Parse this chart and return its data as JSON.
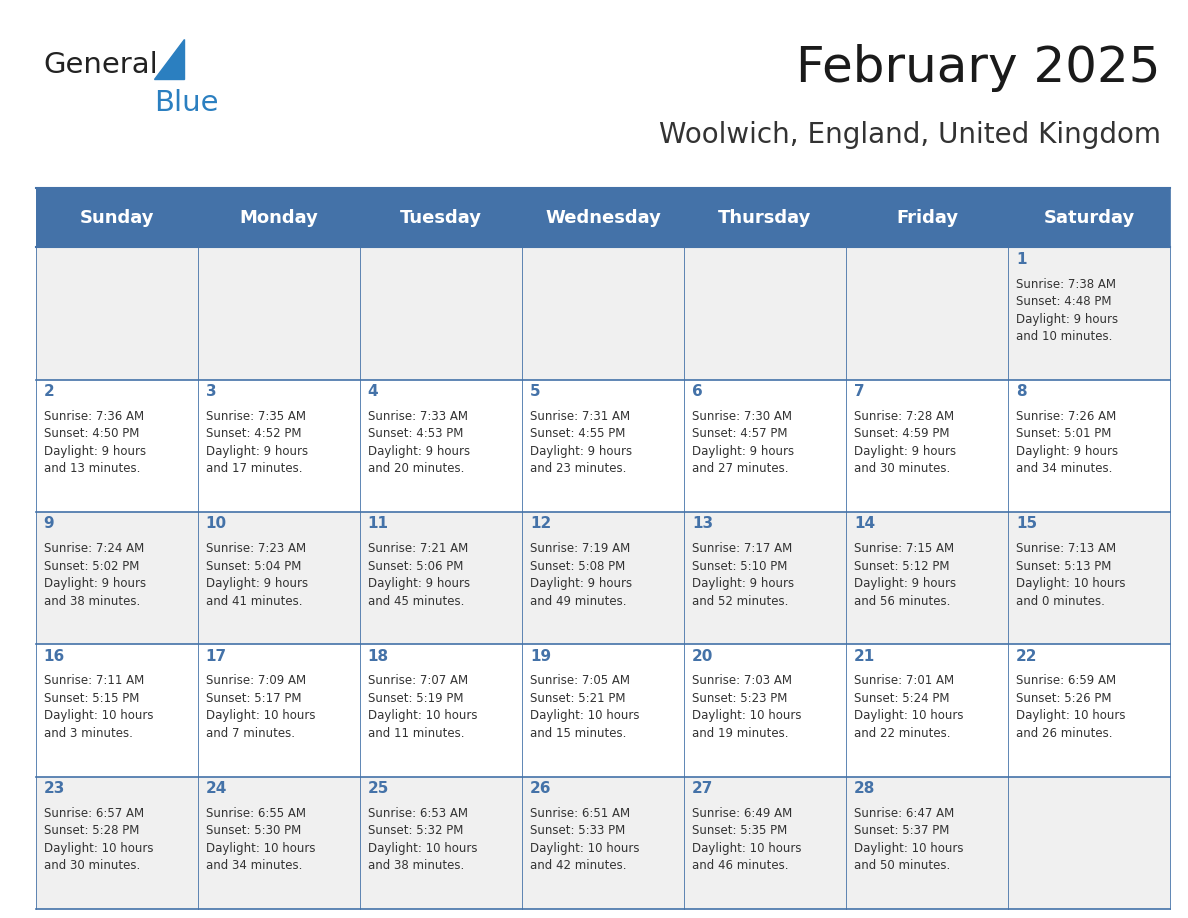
{
  "title": "February 2025",
  "subtitle": "Woolwich, England, United Kingdom",
  "header_bg_color": "#4472a8",
  "header_text_color": "#ffffff",
  "header_font_size": 13,
  "day_names": [
    "Sunday",
    "Monday",
    "Tuesday",
    "Wednesday",
    "Thursday",
    "Friday",
    "Saturday"
  ],
  "odd_row_bg": "#f0f0f0",
  "even_row_bg": "#ffffff",
  "cell_border_color": "#4472a8",
  "day_num_color": "#4472a8",
  "day_num_font_size": 11,
  "info_font_size": 8.5,
  "info_color": "#333333",
  "title_font_size": 36,
  "subtitle_font_size": 20,
  "logo_general_color": "#222222",
  "logo_blue_color": "#2b7fc0",
  "calendar_data": [
    [
      {
        "day": null,
        "sunrise": null,
        "sunset": null,
        "daylight": null
      },
      {
        "day": null,
        "sunrise": null,
        "sunset": null,
        "daylight": null
      },
      {
        "day": null,
        "sunrise": null,
        "sunset": null,
        "daylight": null
      },
      {
        "day": null,
        "sunrise": null,
        "sunset": null,
        "daylight": null
      },
      {
        "day": null,
        "sunrise": null,
        "sunset": null,
        "daylight": null
      },
      {
        "day": null,
        "sunrise": null,
        "sunset": null,
        "daylight": null
      },
      {
        "day": 1,
        "sunrise": "7:38 AM",
        "sunset": "4:48 PM",
        "daylight": "9 hours\nand 10 minutes."
      }
    ],
    [
      {
        "day": 2,
        "sunrise": "7:36 AM",
        "sunset": "4:50 PM",
        "daylight": "9 hours\nand 13 minutes."
      },
      {
        "day": 3,
        "sunrise": "7:35 AM",
        "sunset": "4:52 PM",
        "daylight": "9 hours\nand 17 minutes."
      },
      {
        "day": 4,
        "sunrise": "7:33 AM",
        "sunset": "4:53 PM",
        "daylight": "9 hours\nand 20 minutes."
      },
      {
        "day": 5,
        "sunrise": "7:31 AM",
        "sunset": "4:55 PM",
        "daylight": "9 hours\nand 23 minutes."
      },
      {
        "day": 6,
        "sunrise": "7:30 AM",
        "sunset": "4:57 PM",
        "daylight": "9 hours\nand 27 minutes."
      },
      {
        "day": 7,
        "sunrise": "7:28 AM",
        "sunset": "4:59 PM",
        "daylight": "9 hours\nand 30 minutes."
      },
      {
        "day": 8,
        "sunrise": "7:26 AM",
        "sunset": "5:01 PM",
        "daylight": "9 hours\nand 34 minutes."
      }
    ],
    [
      {
        "day": 9,
        "sunrise": "7:24 AM",
        "sunset": "5:02 PM",
        "daylight": "9 hours\nand 38 minutes."
      },
      {
        "day": 10,
        "sunrise": "7:23 AM",
        "sunset": "5:04 PM",
        "daylight": "9 hours\nand 41 minutes."
      },
      {
        "day": 11,
        "sunrise": "7:21 AM",
        "sunset": "5:06 PM",
        "daylight": "9 hours\nand 45 minutes."
      },
      {
        "day": 12,
        "sunrise": "7:19 AM",
        "sunset": "5:08 PM",
        "daylight": "9 hours\nand 49 minutes."
      },
      {
        "day": 13,
        "sunrise": "7:17 AM",
        "sunset": "5:10 PM",
        "daylight": "9 hours\nand 52 minutes."
      },
      {
        "day": 14,
        "sunrise": "7:15 AM",
        "sunset": "5:12 PM",
        "daylight": "9 hours\nand 56 minutes."
      },
      {
        "day": 15,
        "sunrise": "7:13 AM",
        "sunset": "5:13 PM",
        "daylight": "10 hours\nand 0 minutes."
      }
    ],
    [
      {
        "day": 16,
        "sunrise": "7:11 AM",
        "sunset": "5:15 PM",
        "daylight": "10 hours\nand 3 minutes."
      },
      {
        "day": 17,
        "sunrise": "7:09 AM",
        "sunset": "5:17 PM",
        "daylight": "10 hours\nand 7 minutes."
      },
      {
        "day": 18,
        "sunrise": "7:07 AM",
        "sunset": "5:19 PM",
        "daylight": "10 hours\nand 11 minutes."
      },
      {
        "day": 19,
        "sunrise": "7:05 AM",
        "sunset": "5:21 PM",
        "daylight": "10 hours\nand 15 minutes."
      },
      {
        "day": 20,
        "sunrise": "7:03 AM",
        "sunset": "5:23 PM",
        "daylight": "10 hours\nand 19 minutes."
      },
      {
        "day": 21,
        "sunrise": "7:01 AM",
        "sunset": "5:24 PM",
        "daylight": "10 hours\nand 22 minutes."
      },
      {
        "day": 22,
        "sunrise": "6:59 AM",
        "sunset": "5:26 PM",
        "daylight": "10 hours\nand 26 minutes."
      }
    ],
    [
      {
        "day": 23,
        "sunrise": "6:57 AM",
        "sunset": "5:28 PM",
        "daylight": "10 hours\nand 30 minutes."
      },
      {
        "day": 24,
        "sunrise": "6:55 AM",
        "sunset": "5:30 PM",
        "daylight": "10 hours\nand 34 minutes."
      },
      {
        "day": 25,
        "sunrise": "6:53 AM",
        "sunset": "5:32 PM",
        "daylight": "10 hours\nand 38 minutes."
      },
      {
        "day": 26,
        "sunrise": "6:51 AM",
        "sunset": "5:33 PM",
        "daylight": "10 hours\nand 42 minutes."
      },
      {
        "day": 27,
        "sunrise": "6:49 AM",
        "sunset": "5:35 PM",
        "daylight": "10 hours\nand 46 minutes."
      },
      {
        "day": 28,
        "sunrise": "6:47 AM",
        "sunset": "5:37 PM",
        "daylight": "10 hours\nand 50 minutes."
      },
      {
        "day": null,
        "sunrise": null,
        "sunset": null,
        "daylight": null
      }
    ]
  ]
}
